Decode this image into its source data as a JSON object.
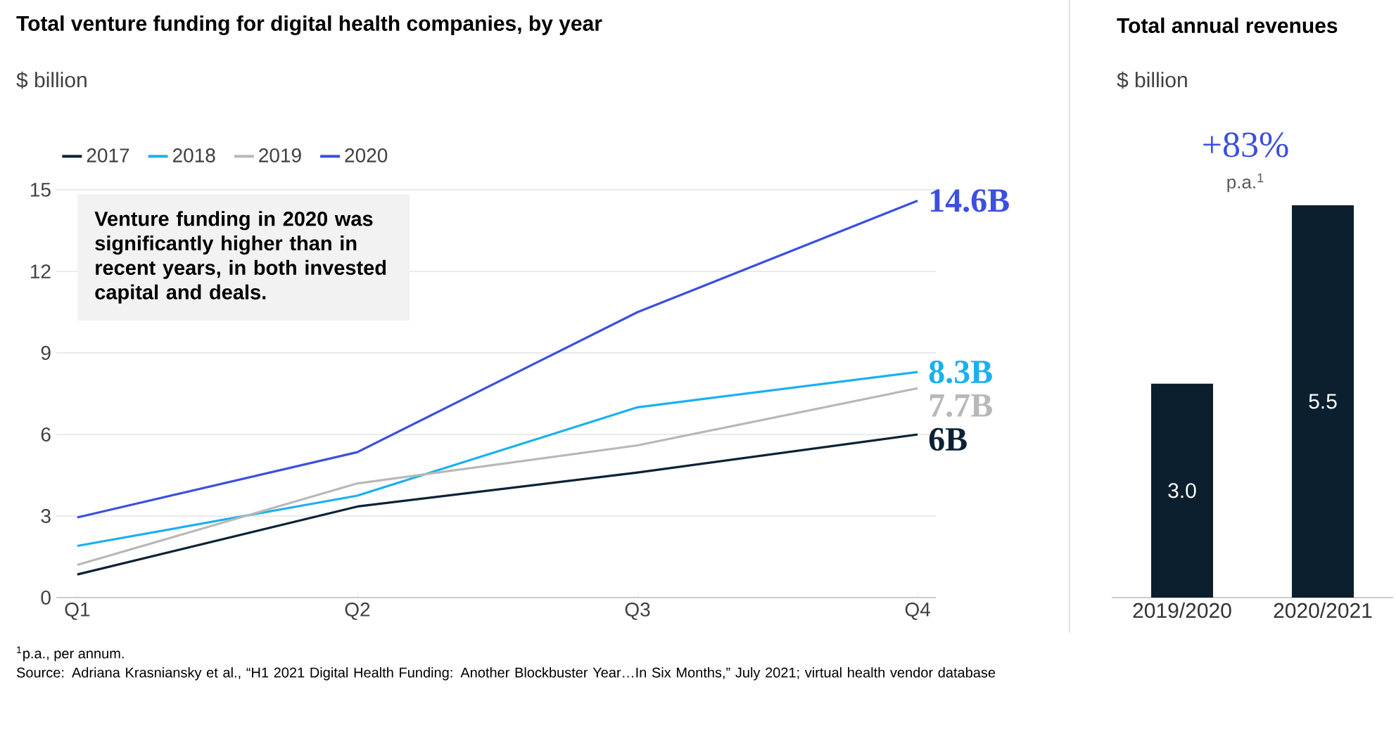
{
  "chart_data": [
    {
      "type": "line",
      "title": "Total venture funding for digital health companies, by year",
      "subtitle": "$ billion",
      "categories": [
        "Q1",
        "Q2",
        "Q3",
        "Q4"
      ],
      "ylim": [
        0,
        15
      ],
      "yticks": [
        0,
        3,
        6,
        9,
        12,
        15
      ],
      "grid": "y",
      "legend": "top left",
      "series": [
        {
          "name": "2017",
          "color": "#0b2236",
          "values": [
            0.85,
            3.35,
            4.6,
            6.0
          ],
          "value_labels": [
            null,
            null,
            null,
            "6B"
          ]
        },
        {
          "name": "2018",
          "color": "#1ab0f0",
          "values": [
            1.9,
            3.75,
            7.0,
            8.3
          ],
          "value_labels": [
            null,
            null,
            null,
            "8.3B"
          ]
        },
        {
          "name": "2019",
          "color": "#b8b8b8",
          "values": [
            1.2,
            4.2,
            5.6,
            7.7
          ],
          "value_labels": [
            null,
            null,
            null,
            "7.7B"
          ]
        },
        {
          "name": "2020",
          "color": "#3c4fe0",
          "values": [
            2.95,
            5.35,
            10.5,
            14.6
          ],
          "value_labels": [
            null,
            null,
            null,
            "14.6B"
          ]
        }
      ],
      "annotations": [
        "Venture funding in 2020 was significantly higher than in recent years, in both invested capital and deals.",
        "$^{1}$p.a., per annum.",
        "Source: Adriana Krasniansky et al., “H1 2021 Digital Health Funding: Another Blockbuster Year…In Six Months,” July 2021; virtual health vendor database"
      ]
    },
    {
      "type": "bar",
      "title": "Total annual revenues",
      "subtitle": "$ billion",
      "categories": [
        "2019/2020",
        "2020/2021"
      ],
      "values": [
        3.0,
        5.5
      ],
      "value_labels": [
        "3.0",
        "5.5"
      ],
      "color": "#0b1f2e",
      "annotations": [
        "+83%",
        "p.a.$^{1}$"
      ]
    }
  ]
}
